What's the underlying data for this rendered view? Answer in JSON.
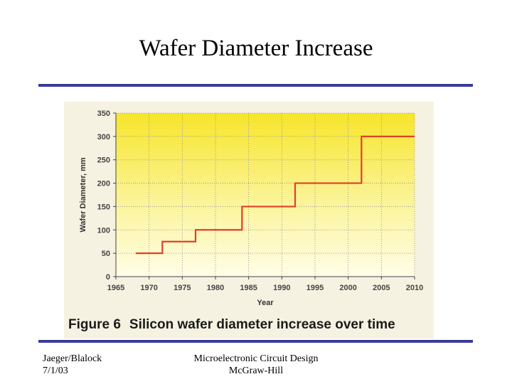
{
  "slide": {
    "title": "Wafer Diameter Increase",
    "footer_left": [
      "Jaeger/Blalock",
      "7/1/03"
    ],
    "footer_center": [
      "Microelectronic Circuit Design",
      "McGraw-Hill"
    ]
  },
  "figure": {
    "number_label": "Figure 6",
    "caption": "Silicon wafer diameter increase over time"
  },
  "colors": {
    "rule": "#3a3a9a",
    "line": "#e0402a",
    "grid": "#888888"
  },
  "chart_data": {
    "type": "line",
    "title": "",
    "xlabel": "Year",
    "ylabel": "Wafer Diameter, mm",
    "xlim": [
      1965,
      2010
    ],
    "ylim": [
      0,
      350
    ],
    "xticks": [
      1965,
      1970,
      1975,
      1980,
      1985,
      1990,
      1995,
      2000,
      2005,
      2010
    ],
    "yticks": [
      0,
      50,
      100,
      150,
      200,
      250,
      300,
      350
    ],
    "grid": true,
    "series": [
      {
        "name": "Wafer diameter",
        "step": true,
        "x": [
          1968,
          1972,
          1977,
          1984,
          1992,
          2002,
          2010
        ],
        "y": [
          50,
          75,
          100,
          150,
          200,
          300,
          300
        ]
      }
    ]
  }
}
